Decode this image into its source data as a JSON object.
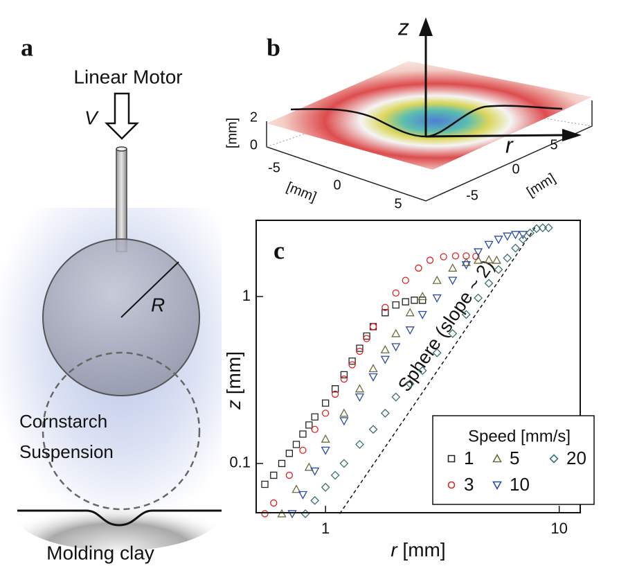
{
  "panel_a": {
    "label": "a",
    "motor": "Linear Motor",
    "velocity": "V",
    "radius": "R",
    "suspension": [
      "Cornstarch",
      "Suspension"
    ],
    "clay": "Molding clay"
  },
  "panel_b": {
    "label": "b",
    "z_axis": "z",
    "r_axis": "r",
    "vertical_ticks": [
      "2",
      "0"
    ],
    "vertical_unit": "[mm]",
    "left_ticks": [
      "-5",
      "0",
      "5"
    ],
    "left_unit": "[mm]",
    "right_ticks": [
      "5",
      "0",
      "-5"
    ],
    "right_unit": "[mm]"
  },
  "chart_data": {
    "type": "scatter",
    "panel_label": "c",
    "xlabel": {
      "symbol": "r",
      "unit": "[mm]"
    },
    "ylabel": {
      "symbol": "z",
      "unit": "[mm]"
    },
    "xscale": "log",
    "yscale": "log",
    "xlim": [
      0.505,
      12.3
    ],
    "ylim": [
      0.0507,
      2.86
    ],
    "xticks": [
      1,
      10
    ],
    "yticks": [
      0.1,
      1
    ],
    "legend_title": "Speed [mm/s]",
    "legend_position": "lower right",
    "series": [
      {
        "name": "1",
        "color": "#222222",
        "marker": "square",
        "x": [
          0.55,
          0.6,
          0.65,
          0.7,
          0.75,
          0.8,
          0.85,
          0.9,
          1.0,
          1.1,
          1.2,
          1.3,
          1.4,
          1.5,
          1.6,
          1.8,
          2.0,
          2.2,
          2.4,
          2.6
        ],
        "values": [
          0.075,
          0.085,
          0.1,
          0.115,
          0.13,
          0.15,
          0.17,
          0.19,
          0.23,
          0.28,
          0.34,
          0.41,
          0.49,
          0.58,
          0.66,
          0.8,
          0.89,
          0.93,
          0.95,
          0.95
        ]
      },
      {
        "name": "3",
        "color": "#e02020",
        "marker": "circle",
        "x": [
          0.55,
          0.6,
          0.7,
          0.8,
          0.9,
          1.0,
          1.1,
          1.2,
          1.3,
          1.4,
          1.5,
          1.6,
          1.8,
          2.0,
          2.2,
          2.5,
          2.8,
          3.2,
          3.6,
          4.0,
          4.4
        ],
        "values": [
          0.05,
          0.058,
          0.085,
          0.12,
          0.16,
          0.2,
          0.26,
          0.32,
          0.39,
          0.47,
          0.56,
          0.66,
          0.86,
          1.05,
          1.25,
          1.48,
          1.65,
          1.73,
          1.75,
          1.75,
          1.74
        ]
      },
      {
        "name": "5",
        "color": "#6b6b3a",
        "marker": "triangle-up",
        "x": [
          0.65,
          0.75,
          0.85,
          1.0,
          1.2,
          1.4,
          1.6,
          1.8,
          2.0,
          2.3,
          2.6,
          3.0,
          3.5,
          4.0,
          4.5,
          5.0,
          5.4
        ],
        "values": [
          0.05,
          0.07,
          0.095,
          0.14,
          0.2,
          0.28,
          0.37,
          0.48,
          0.6,
          0.8,
          1.0,
          1.25,
          1.48,
          1.6,
          1.65,
          1.66,
          1.65
        ]
      },
      {
        "name": "10",
        "color": "#2a4aa8",
        "marker": "triangle-down",
        "x": [
          0.72,
          0.8,
          0.9,
          1.0,
          1.2,
          1.4,
          1.6,
          1.8,
          2.0,
          2.3,
          2.6,
          3.0,
          3.5,
          4.0,
          4.5,
          5.0,
          5.5,
          6.0,
          6.5,
          7.0
        ],
        "values": [
          0.05,
          0.065,
          0.09,
          0.12,
          0.18,
          0.25,
          0.33,
          0.42,
          0.5,
          0.63,
          0.78,
          0.98,
          1.25,
          1.55,
          1.85,
          2.05,
          2.2,
          2.3,
          2.35,
          2.35
        ]
      },
      {
        "name": "20",
        "color": "#3d6e6e",
        "marker": "diamond",
        "x": [
          0.82,
          0.9,
          1.0,
          1.1,
          1.2,
          1.4,
          1.6,
          1.8,
          2.0,
          2.3,
          2.6,
          3.0,
          3.5,
          4.0,
          4.5,
          5.0,
          5.5,
          6.0,
          6.5,
          7.0,
          7.5,
          8.0,
          8.5,
          9.0
        ],
        "values": [
          0.05,
          0.06,
          0.072,
          0.085,
          0.1,
          0.13,
          0.16,
          0.2,
          0.25,
          0.3,
          0.36,
          0.46,
          0.6,
          0.78,
          0.98,
          1.2,
          1.45,
          1.7,
          1.95,
          2.2,
          2.4,
          2.55,
          2.58,
          2.58
        ]
      }
    ],
    "reference_line": {
      "label": "Sphere (slope ~ 2)",
      "x": [
        1.15,
        7.9
      ],
      "values": [
        0.05,
        2.6
      ]
    }
  }
}
